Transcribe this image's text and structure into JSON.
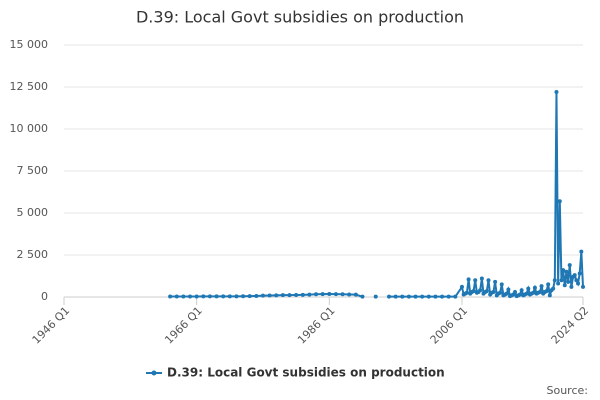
{
  "chart_data": {
    "type": "line",
    "title": "D.39: Local Govt subsidies on production",
    "source": "Source:",
    "xlim": [
      1946,
      2024.25
    ],
    "xticks": [
      {
        "value": 1946,
        "label": "1946 Q1"
      },
      {
        "value": 1966,
        "label": "1966 Q1"
      },
      {
        "value": 1986,
        "label": "1986 Q1"
      },
      {
        "value": 2006,
        "label": "2006 Q1"
      },
      {
        "value": 2024.25,
        "label": "2024 Q2"
      }
    ],
    "ylim": [
      0,
      15000
    ],
    "yticks": [
      0,
      {
        "value": 2500,
        "label": "2 500"
      },
      {
        "value": 5000,
        "label": "5 000"
      },
      {
        "value": 7500,
        "label": "7 500"
      },
      {
        "value": 10000,
        "label": "10 000"
      },
      {
        "value": 12500,
        "label": "12 500"
      },
      {
        "value": 15000,
        "label": "15 000"
      }
    ],
    "grid": true,
    "x": [
      1962,
      1963,
      1964,
      1965,
      1966,
      1967,
      1968,
      1969,
      1970,
      1971,
      1972,
      1973,
      1974,
      1975,
      1976,
      1977,
      1978,
      1979,
      1980,
      1981,
      1982,
      1983,
      1984,
      1985,
      1986,
      1987,
      1988,
      1989,
      1990,
      1991,
      1992,
      1993,
      1994,
      1995,
      1996,
      1997,
      1998,
      1999,
      2000,
      2001,
      2002,
      2003,
      2004,
      2005,
      2006,
      2006.25,
      2006.5,
      2006.75,
      2007,
      2007.25,
      2007.5,
      2007.75,
      2008,
      2008.25,
      2008.5,
      2008.75,
      2009,
      2009.25,
      2009.5,
      2009.75,
      2010,
      2010.25,
      2010.5,
      2010.75,
      2011,
      2011.25,
      2011.5,
      2011.75,
      2012,
      2012.25,
      2012.5,
      2012.75,
      2013,
      2013.25,
      2013.5,
      2013.75,
      2014,
      2014.25,
      2014.5,
      2014.75,
      2015,
      2015.25,
      2015.5,
      2015.75,
      2016,
      2016.25,
      2016.5,
      2016.75,
      2017,
      2017.25,
      2017.5,
      2017.75,
      2018,
      2018.25,
      2018.5,
      2018.75,
      2019,
      2019.25,
      2019.5,
      2019.75,
      2020,
      2020.25,
      2020.5,
      2020.75,
      2021,
      2021.25,
      2021.5,
      2021.75,
      2022,
      2022.25,
      2022.5,
      2022.75,
      2023,
      2023.25,
      2023.5,
      2023.75,
      2024,
      2024.25
    ],
    "series": [
      {
        "name": "D.39: Local Govt subsidies on production",
        "color": "#1f77b4",
        "values": [
          30,
          30,
          30,
          30,
          30,
          35,
          35,
          40,
          40,
          40,
          40,
          45,
          50,
          60,
          80,
          90,
          100,
          110,
          110,
          120,
          130,
          140,
          160,
          170,
          180,
          170,
          160,
          150,
          140,
          20,
          null,
          20,
          null,
          20,
          20,
          20,
          20,
          20,
          20,
          20,
          20,
          20,
          20,
          20,
          600,
          150,
          200,
          250,
          1050,
          200,
          300,
          350,
          1000,
          250,
          300,
          400,
          1100,
          200,
          300,
          350,
          1000,
          150,
          250,
          300,
          900,
          100,
          200,
          250,
          750,
          100,
          150,
          200,
          450,
          50,
          100,
          150,
          300,
          50,
          100,
          150,
          400,
          100,
          150,
          200,
          500,
          150,
          200,
          250,
          550,
          200,
          250,
          300,
          650,
          200,
          300,
          350,
          750,
          100,
          400,
          500,
          1000,
          12200,
          800,
          5700,
          1000,
          1600,
          700,
          1500,
          900,
          1900,
          600,
          1200,
          1300,
          1000,
          800,
          1400,
          2700,
          600
        ]
      }
    ]
  }
}
